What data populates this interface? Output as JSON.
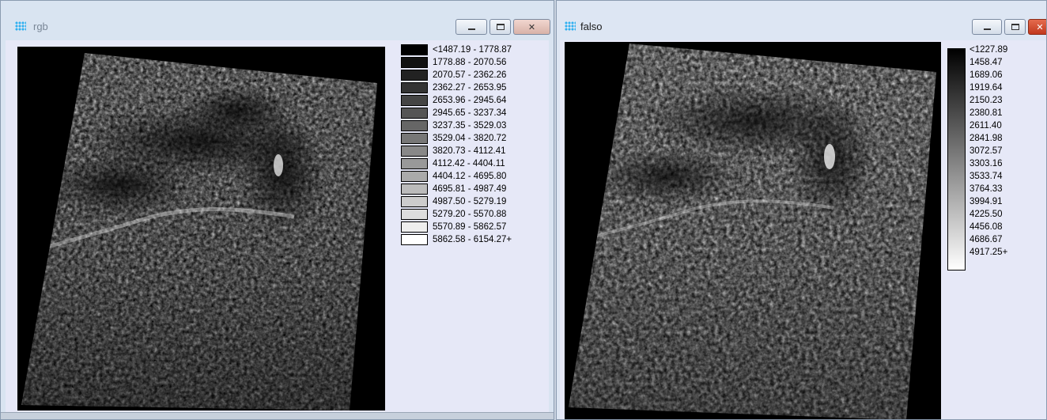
{
  "windows": [
    {
      "id": "rgb",
      "title": "rgb",
      "controls": {
        "minimize": "minimize-icon",
        "maximize": "maximize-icon",
        "close": "close-icon"
      },
      "legend": {
        "type": "classes",
        "entries": [
          {
            "label": "<1487.19 - 1778.87",
            "color": "#000000"
          },
          {
            "label": "1778.88 - 2070.56",
            "color": "#111111"
          },
          {
            "label": "2070.57 - 2362.26",
            "color": "#222222"
          },
          {
            "label": "2362.27 - 2653.95",
            "color": "#333333"
          },
          {
            "label": "2653.96 - 2945.64",
            "color": "#444444"
          },
          {
            "label": "2945.65 - 3237.34",
            "color": "#555555"
          },
          {
            "label": "3237.35 - 3529.03",
            "color": "#666666"
          },
          {
            "label": "3529.04 - 3820.72",
            "color": "#777777"
          },
          {
            "label": "3820.73 - 4112.41",
            "color": "#888888"
          },
          {
            "label": "4112.42 - 4404.11",
            "color": "#999999"
          },
          {
            "label": "4404.12 - 4695.80",
            "color": "#aaaaaa"
          },
          {
            "label": "4695.81 - 4987.49",
            "color": "#bbbbbb"
          },
          {
            "label": "4987.50 - 5279.19",
            "color": "#cccccc"
          },
          {
            "label": "5279.20 - 5570.88",
            "color": "#dddddd"
          },
          {
            "label": "5570.89 - 5862.57",
            "color": "#eeeeee"
          },
          {
            "label": "5862.58 - 6154.27+",
            "color": "#ffffff"
          }
        ]
      }
    },
    {
      "id": "falso",
      "title": "falso",
      "controls": {
        "minimize": "minimize-icon",
        "maximize": "maximize-icon",
        "close": "close-icon"
      },
      "legend": {
        "type": "ramp",
        "ramp_from": "#000000",
        "ramp_to": "#ffffff",
        "labels": [
          "<1227.89",
          "1458.47",
          "1689.06",
          "1919.64",
          "2150.23",
          "2380.81",
          "2611.40",
          "2841.98",
          "3072.57",
          "3303.16",
          "3533.74",
          "3764.33",
          "3994.91",
          "4225.50",
          "4456.08",
          "4686.67",
          "4917.25+"
        ]
      }
    }
  ]
}
